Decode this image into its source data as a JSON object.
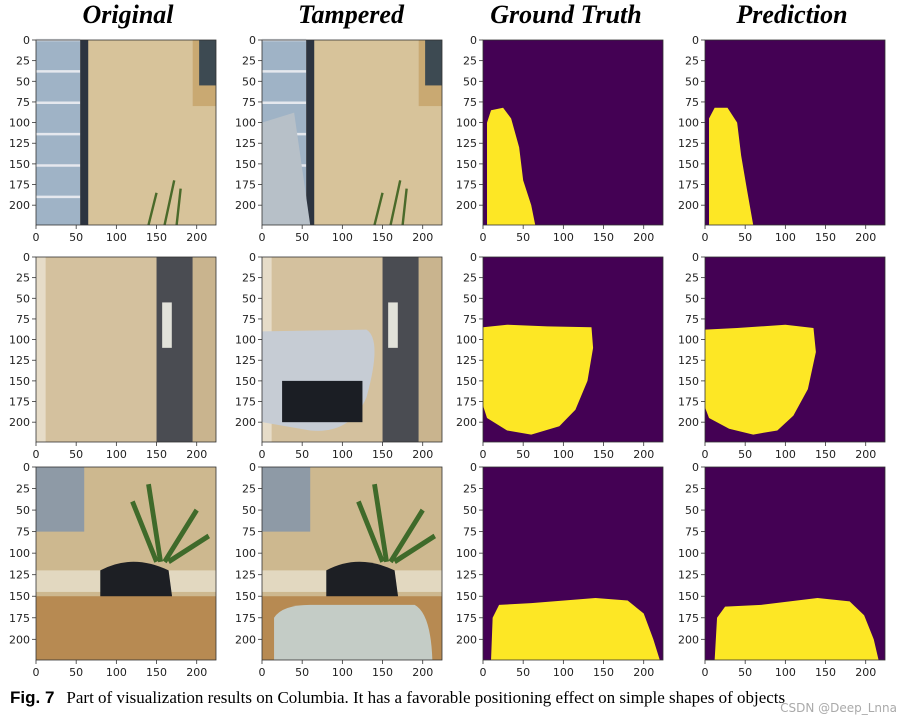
{
  "columns": [
    "Original",
    "Tampered",
    "Ground Truth",
    "Prediction"
  ],
  "axes": {
    "xlim": [
      0,
      224
    ],
    "ylim": [
      0,
      224
    ],
    "xticks": [
      0,
      50,
      100,
      150,
      200
    ],
    "yticks": [
      0,
      25,
      50,
      75,
      100,
      125,
      150,
      175,
      200
    ]
  },
  "caption": {
    "label": "Fig. 7",
    "text": "Part of visualization results on Columbia. It has a favorable positioning effect on simple shapes of objects"
  },
  "watermark": "CSDN @Deep_Lnna"
}
